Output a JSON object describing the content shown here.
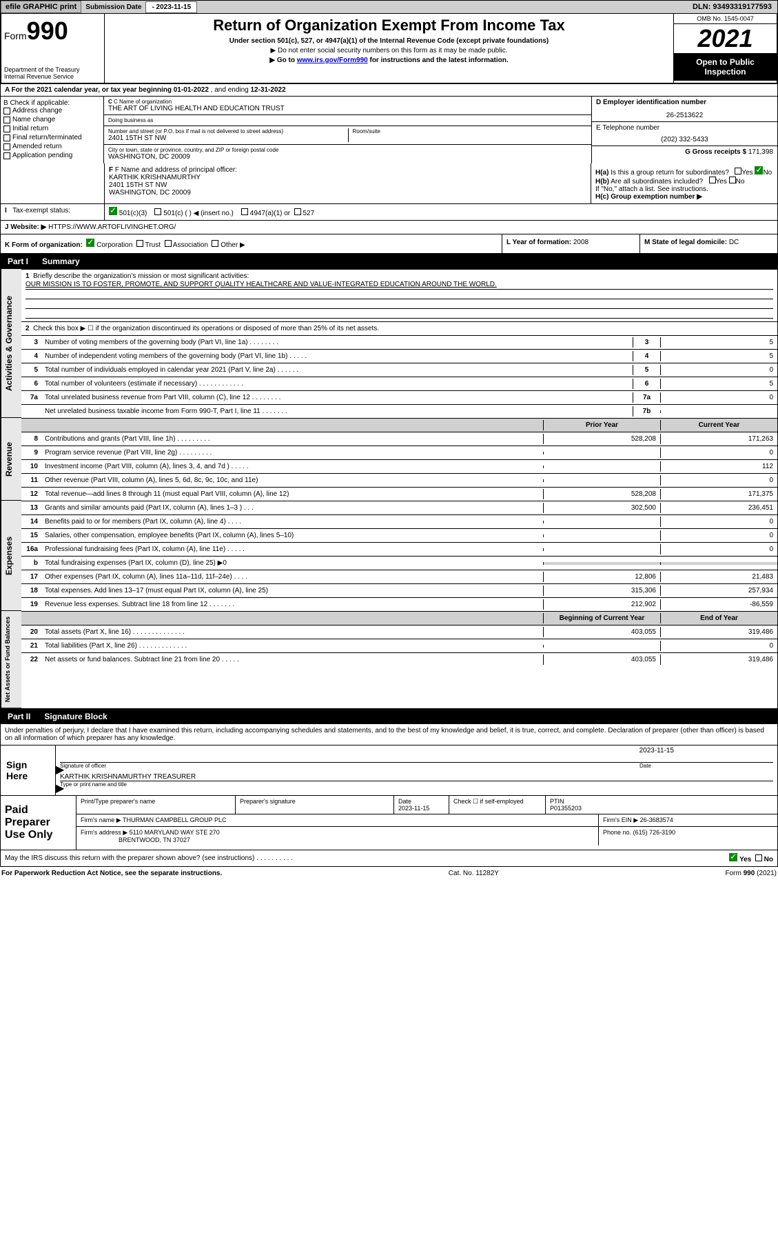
{
  "top": {
    "efile": "efile GRAPHIC print",
    "sub_label": "Submission Date",
    "sub_date": "- 2023-11-15",
    "dln": "DLN: 93493319177593"
  },
  "hdr": {
    "form_word": "Form",
    "form_num": "990",
    "dept": "Department of the Treasury",
    "irs": "Internal Revenue Service",
    "title": "Return of Organization Exempt From Income Tax",
    "sub1": "Under section 501(c), 527, or 4947(a)(1) of the Internal Revenue Code (except private foundations)",
    "sub2": "▶ Do not enter social security numbers on this form as it may be made public.",
    "sub3_pre": "▶ Go to ",
    "sub3_link": "www.irs.gov/Form990",
    "sub3_post": " for instructions and the latest information.",
    "omb": "OMB No. 1545-0047",
    "year": "2021",
    "open": "Open to Public Inspection"
  },
  "row_a": {
    "label": "A For the 2021 calendar year, or tax year beginning ",
    "begin": "01-01-2022",
    "mid": " , and ending ",
    "end": "12-31-2022"
  },
  "box_b": {
    "hdr": "B Check if applicable:",
    "opts": [
      "Address change",
      "Name change",
      "Initial return",
      "Final return/terminated",
      "Amended return",
      "Application pending"
    ]
  },
  "box_c": {
    "name_lbl": "C Name of organization",
    "name": "THE ART OF LIVING HEALTH AND EDUCATION TRUST",
    "dba_lbl": "Doing business as",
    "addr_lbl": "Number and street (or P.O. box if mail is not delivered to street address)",
    "room_lbl": "Room/suite",
    "addr": "2401 15TH ST NW",
    "city_lbl": "City or town, state or province, country, and ZIP or foreign postal code",
    "city": "WASHINGTON, DC  20009"
  },
  "box_d": {
    "ein_lbl": "D Employer identification number",
    "ein": "26-2513622",
    "phone_lbl": "E Telephone number",
    "phone": "(202) 332-5433",
    "gross_lbl": "G Gross receipts $",
    "gross": "171,398"
  },
  "row_f": {
    "f_lbl": "F Name and address of principal officer:",
    "f_name": "KARTHIK KRISHNAMURTHY",
    "f_addr1": "2401 15TH ST NW",
    "f_addr2": "WASHINGTON, DC  20009",
    "ha_lbl": "H(a)  Is this a group return for subordinates?",
    "ha_yes": "Yes",
    "ha_no": "No",
    "hb_lbl": "H(b)  Are all subordinates included?",
    "hb_note": "If \"No,\" attach a list. See instructions.",
    "hc_lbl": "H(c)  Group exemption number ▶"
  },
  "row_i": {
    "lbl": "I   Tax-exempt status:",
    "o1": "501(c)(3)",
    "o2": "501(c) (  ) ◀ (insert no.)",
    "o3": "4947(a)(1) or",
    "o4": "527"
  },
  "row_j": {
    "lbl": "J   Website: ▶",
    "val": "HTTPS://WWW.ARTOFLIVINGHET.ORG/"
  },
  "row_k": {
    "k_lbl": "K Form of organization:",
    "k1": "Corporation",
    "k2": "Trust",
    "k3": "Association",
    "k4": "Other ▶",
    "l_lbl": "L Year of formation:",
    "l_val": "2008",
    "m_lbl": "M State of legal domicile:",
    "m_val": "DC"
  },
  "part1": {
    "num": "Part I",
    "title": "Summary",
    "l1_lbl": "Briefly describe the organization's mission or most significant activities:",
    "l1_val": "OUR MISSION IS TO FOSTER, PROMOTE, AND SUPPORT QUALITY HEALTHCARE AND VALUE-INTEGRATED EDUCATION AROUND THE WORLD.",
    "l2": "Check this box ▶ ☐  if the organization discontinued its operations or disposed of more than 25% of its net assets.",
    "rows_gov": [
      {
        "n": "3",
        "t": "Number of voting members of the governing body (Part VI, line 1a)  .   .   .   .   .   .   .   .",
        "rn": "3",
        "v": "5"
      },
      {
        "n": "4",
        "t": "Number of independent voting members of the governing body (Part VI, line 1b)  .   .   .   .   .",
        "rn": "4",
        "v": "5"
      },
      {
        "n": "5",
        "t": "Total number of individuals employed in calendar year 2021 (Part V, line 2a)  .   .   .   .   .   .",
        "rn": "5",
        "v": "0"
      },
      {
        "n": "6",
        "t": "Total number of volunteers (estimate if necessary)  .   .   .   .   .   .   .   .   .   .   .   .",
        "rn": "6",
        "v": "5"
      },
      {
        "n": "7a",
        "t": "Total unrelated business revenue from Part VIII, column (C), line 12  .   .   .   .   .   .   .   .",
        "rn": "7a",
        "v": "0"
      },
      {
        "n": "",
        "t": "Net unrelated business taxable income from Form 990-T, Part I, line 11  .   .   .   .   .   .   .",
        "rn": "7b",
        "v": ""
      }
    ],
    "col_hdr_prior": "Prior Year",
    "col_hdr_curr": "Current Year",
    "rows_rev": [
      {
        "n": "8",
        "t": "Contributions and grants (Part VIII, line 1h)  .   .   .   .   .   .   .   .   .",
        "v1": "528,208",
        "v2": "171,263"
      },
      {
        "n": "9",
        "t": "Program service revenue (Part VIII, line 2g)  .   .   .   .   .   .   .   .   .",
        "v1": "",
        "v2": "0"
      },
      {
        "n": "10",
        "t": "Investment income (Part VIII, column (A), lines 3, 4, and 7d )  .   .   .   .   .",
        "v1": "",
        "v2": "112"
      },
      {
        "n": "11",
        "t": "Other revenue (Part VIII, column (A), lines 5, 6d, 8c, 9c, 10c, and 11e)",
        "v1": "",
        "v2": "0"
      },
      {
        "n": "12",
        "t": "Total revenue—add lines 8 through 11 (must equal Part VIII, column (A), line 12)",
        "v1": "528,208",
        "v2": "171,375"
      }
    ],
    "rows_exp": [
      {
        "n": "13",
        "t": "Grants and similar amounts paid (Part IX, column (A), lines 1–3 )  .   .   .",
        "v1": "302,500",
        "v2": "236,451"
      },
      {
        "n": "14",
        "t": "Benefits paid to or for members (Part IX, column (A), line 4)  .   .   .   .",
        "v1": "",
        "v2": "0"
      },
      {
        "n": "15",
        "t": "Salaries, other compensation, employee benefits (Part IX, column (A), lines 5–10)",
        "v1": "",
        "v2": "0"
      },
      {
        "n": "16a",
        "t": "Professional fundraising fees (Part IX, column (A), line 11e)  .   .   .   .   .",
        "v1": "",
        "v2": "0"
      },
      {
        "n": "b",
        "t": "Total fundraising expenses (Part IX, column (D), line 25) ▶0",
        "v1": "shade",
        "v2": "shade"
      },
      {
        "n": "17",
        "t": "Other expenses (Part IX, column (A), lines 11a–11d, 11f–24e)  .   .   .   .",
        "v1": "12,806",
        "v2": "21,483"
      },
      {
        "n": "18",
        "t": "Total expenses. Add lines 13–17 (must equal Part IX, column (A), line 25)",
        "v1": "315,306",
        "v2": "257,934"
      },
      {
        "n": "19",
        "t": "Revenue less expenses. Subtract line 18 from line 12  .   .   .   .   .   .   .",
        "v1": "212,902",
        "v2": "-86,559"
      }
    ],
    "col_hdr_boy": "Beginning of Current Year",
    "col_hdr_eoy": "End of Year",
    "rows_na": [
      {
        "n": "20",
        "t": "Total assets (Part X, line 16)  .   .   .   .   .   .   .   .   .   .   .   .   .   .",
        "v1": "403,055",
        "v2": "319,486"
      },
      {
        "n": "21",
        "t": "Total liabilities (Part X, line 26)  .   .   .   .   .   .   .   .   .   .   .   .   .",
        "v1": "",
        "v2": "0"
      },
      {
        "n": "22",
        "t": "Net assets or fund balances. Subtract line 21 from line 20  .   .   .   .   .",
        "v1": "403,055",
        "v2": "319,486"
      }
    ],
    "side_labels": {
      "gov": "Activities & Governance",
      "rev": "Revenue",
      "exp": "Expenses",
      "na": "Net Assets or Fund Balances"
    }
  },
  "part2": {
    "num": "Part II",
    "title": "Signature Block",
    "decl": "Under penalties of perjury, I declare that I have examined this return, including accompanying schedules and statements, and to the best of my knowledge and belief, it is true, correct, and complete. Declaration of preparer (other than officer) is based on all information of which preparer has any knowledge.",
    "sign_here": "Sign Here",
    "sig_officer_lbl": "Signature of officer",
    "date_lbl": "Date",
    "sig_date": "2023-11-15",
    "officer_name": "KARTHIK KRISHNAMURTHY TREASURER",
    "officer_lbl": "Type or print name and title",
    "paid": "Paid Preparer Use Only",
    "p_name_lbl": "Print/Type preparer's name",
    "p_sig_lbl": "Preparer's signature",
    "p_date_lbl": "Date",
    "p_date": "2023-11-15",
    "p_self_lbl": "Check ☐ if self-employed",
    "p_ptin_lbl": "PTIN",
    "p_ptin": "P01355203",
    "firm_name_lbl": "Firm's name    ▶",
    "firm_name": "THURMAN CAMPBELL GROUP PLC",
    "firm_ein_lbl": "Firm's EIN ▶",
    "firm_ein": "26-3683574",
    "firm_addr_lbl": "Firm's address ▶",
    "firm_addr1": "5110 MARYLAND WAY STE 270",
    "firm_addr2": "BRENTWOOD, TN  37027",
    "firm_phone_lbl": "Phone no.",
    "firm_phone": "(615) 726-3190",
    "may_lbl": "May the IRS discuss this return with the preparer shown above? (see instructions)  .   .   .   .   .   .   .   .   .   .",
    "may_yes": "Yes",
    "may_no": "No"
  },
  "footer": {
    "left": "For Paperwork Reduction Act Notice, see the separate instructions.",
    "mid": "Cat. No. 11282Y",
    "right_pre": "Form ",
    "right_b": "990",
    "right_post": " (2021)"
  }
}
